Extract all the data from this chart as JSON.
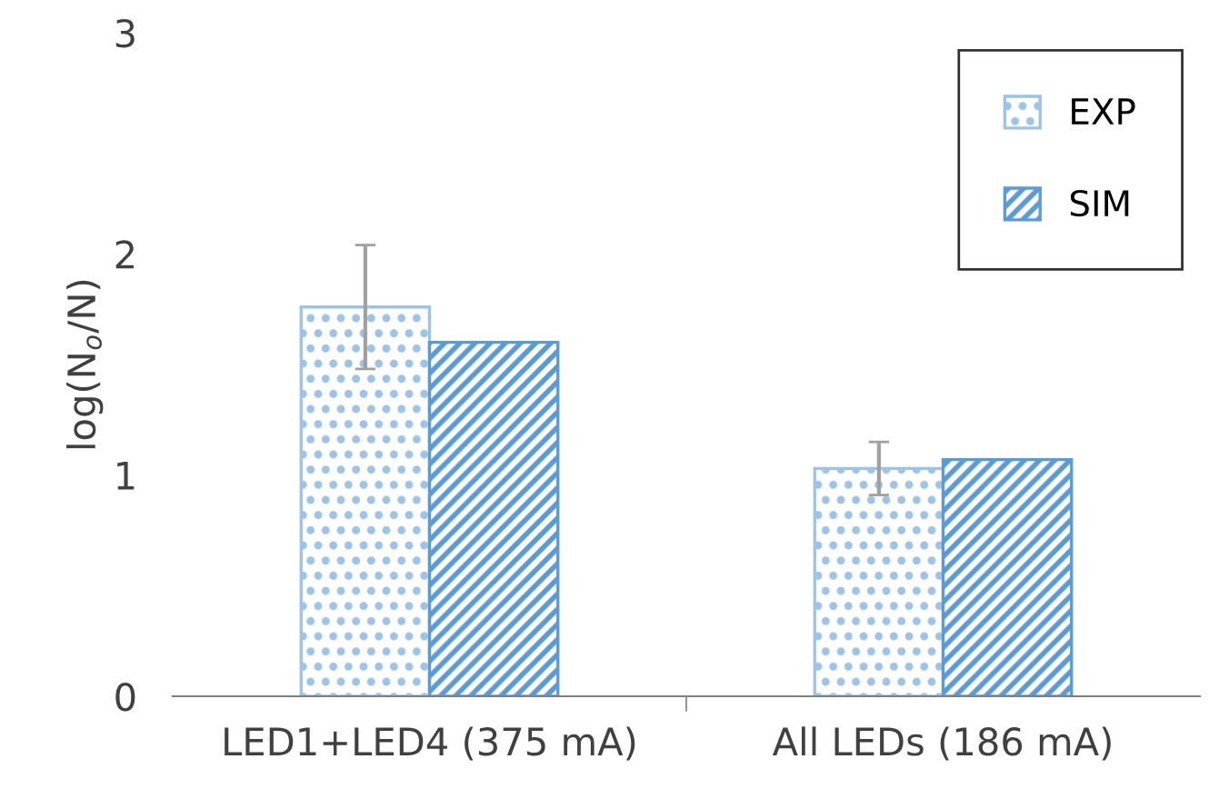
{
  "chart_data": {
    "type": "bar",
    "ylabel": "log(N$_{o}$/N)",
    "categories": [
      "LED1+LED4 (375 mA)",
      "All LEDs (186 mA)"
    ],
    "series": [
      {
        "name": "EXP",
        "color": "#9dc3e6",
        "values": [
          1.76,
          1.03
        ],
        "errors": [
          0.28,
          0.12
        ]
      },
      {
        "name": "SIM",
        "color": "#5b9bd5",
        "values": [
          1.6,
          1.07
        ]
      }
    ],
    "ylim": [
      0,
      3
    ],
    "yticks": [
      0,
      1,
      2,
      3
    ],
    "grid": false,
    "legend": "top right"
  }
}
